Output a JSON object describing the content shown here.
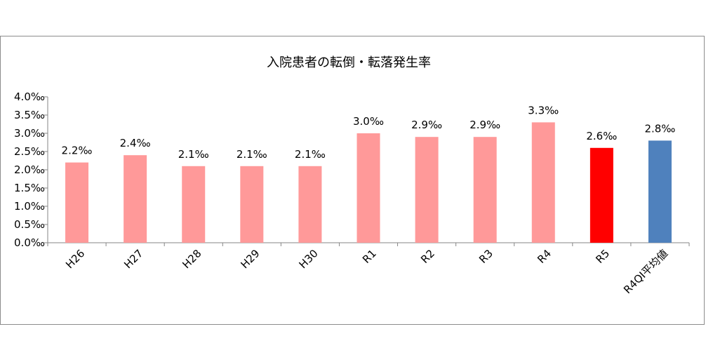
{
  "chart_data": {
    "type": "bar",
    "title": "入院患者の転倒・転落発生率",
    "categories": [
      "H26",
      "H27",
      "H28",
      "H29",
      "H30",
      "R1",
      "R2",
      "R3",
      "R4",
      "R5",
      "R4QI平均値"
    ],
    "values": [
      2.2,
      2.4,
      2.1,
      2.1,
      2.1,
      3.0,
      2.9,
      2.9,
      3.3,
      2.6,
      2.8
    ],
    "data_labels": [
      "2.2‰",
      "2.4‰",
      "2.1‰",
      "2.1‰",
      "2.1‰",
      "3.0‰",
      "2.9‰",
      "2.9‰",
      "3.3‰",
      "2.6‰",
      "2.8‰"
    ],
    "bar_colors": [
      "#ff9999",
      "#ff9999",
      "#ff9999",
      "#ff9999",
      "#ff9999",
      "#ff9999",
      "#ff9999",
      "#ff9999",
      "#ff9999",
      "#ff0000",
      "#4f81bd"
    ],
    "yticks": [
      "0.0‰",
      "0.5‰",
      "1.0‰",
      "1.5‰",
      "2.0‰",
      "2.5‰",
      "3.0‰",
      "3.5‰",
      "4.0‰"
    ],
    "ylim": [
      0,
      4.0
    ],
    "ystep": 0.5,
    "grid": false,
    "legend": "none"
  }
}
